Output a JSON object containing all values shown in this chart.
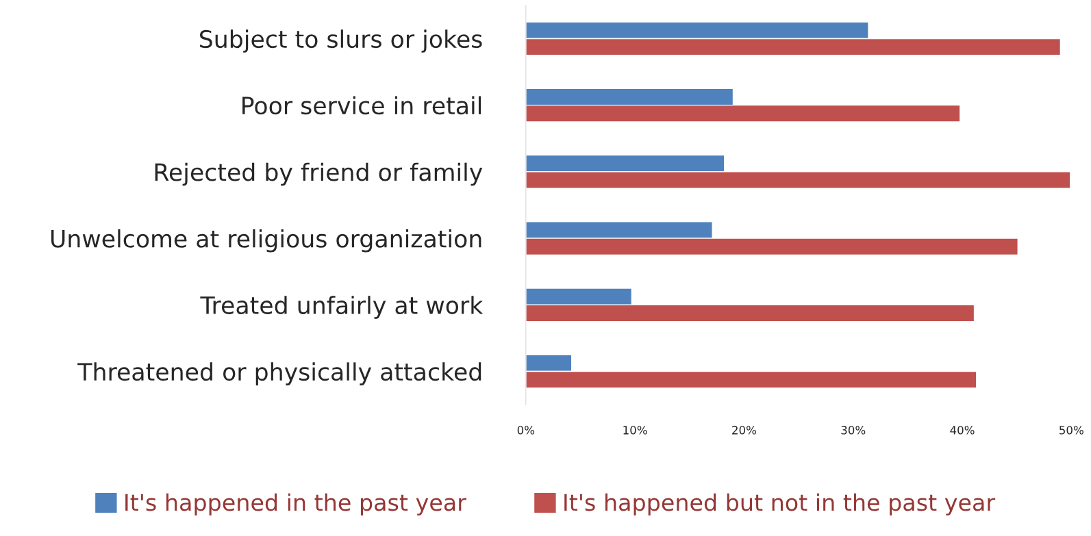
{
  "chart_data": {
    "type": "bar",
    "orientation": "horizontal",
    "categories": [
      "Subject to slurs or jokes",
      "Poor service in retail",
      "Rejected by friend or family",
      "Unwelcome at religious organization",
      "Treated unfairly at work",
      "Threatened or physically attacked"
    ],
    "series": [
      {
        "name": "It's happened in the past year",
        "color": "#4f81bd",
        "values": [
          31.4,
          19.0,
          18.2,
          17.1,
          9.7,
          4.2
        ]
      },
      {
        "name": "It's happened but not in the past year",
        "color": "#c0504d",
        "values": [
          49.0,
          39.8,
          49.9,
          45.1,
          41.1,
          41.3
        ]
      }
    ],
    "xlim": [
      0,
      50
    ],
    "xticks": [
      {
        "value": 0,
        "label": "0%"
      },
      {
        "value": 10,
        "label": "10%"
      },
      {
        "value": 20,
        "label": "20%"
      },
      {
        "value": 30,
        "label": "30%"
      },
      {
        "value": 40,
        "label": "40%"
      },
      {
        "value": 50,
        "label": "50%"
      }
    ],
    "grid": false,
    "legend": "bottom"
  }
}
